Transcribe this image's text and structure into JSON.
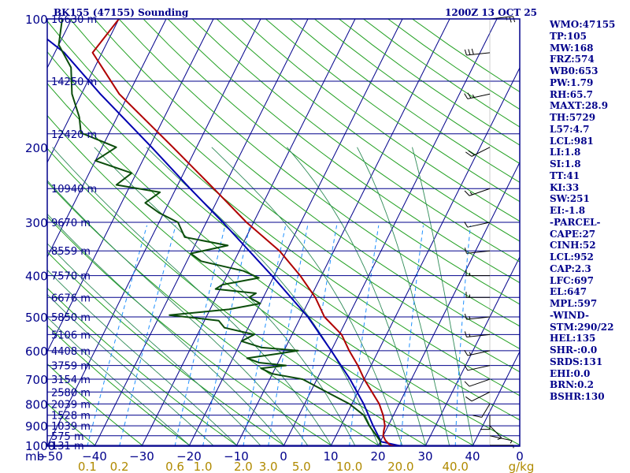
{
  "header": {
    "station": "BK155 (47155) Sounding",
    "time": "1200Z 13 OCT 25"
  },
  "indices": [
    "WMO:47155",
    "TP:105",
    "MW:168",
    "FRZ:574",
    "WB0:653",
    "PW:1.79",
    "RH:65.7",
    "MAXT:28.9",
    "TH:5729",
    "L57:4.7",
    "LCL:981",
    "LI:1.8",
    "SI:1.8",
    "TT:41",
    "KI:33",
    "SW:251",
    "EI:-1.8",
    "-PARCEL-",
    "CAPE:27",
    "CINH:52",
    "LCL:952",
    "CAP:2.3",
    "LFC:697",
    "EL:647",
    "MPL:597",
    "-WIND-",
    "STM:290/22",
    "HEL:135",
    "SHR-:0.0",
    "SRDS:131",
    "EHI:0.0",
    "BRN:0.2",
    "BSHR:130"
  ],
  "colors": {
    "frame": "#00008b",
    "isobar": "#00008b",
    "isotherm": "#00008b",
    "dry_adiabat": "#22a022",
    "moist_adiabat": "#2e8b57",
    "mixing_ratio": "#1e90ff",
    "temperature": "#b00000",
    "dewpoint": "#0b4d0b",
    "parcel": "#0000b0",
    "wind": "#000000",
    "label": "#00008b",
    "mixing_label": "#b08a00"
  },
  "chart_data": {
    "type": "skew-t log-p sounding",
    "pressure_axis_label": "mb",
    "pressure_ticks": [
      100,
      200,
      300,
      400,
      500,
      600,
      700,
      800,
      900,
      1000
    ],
    "height_labels": [
      {
        "p": 100,
        "label": "16630 m"
      },
      {
        "p": 140,
        "label": "14250 m"
      },
      {
        "p": 186,
        "label": "12420 m"
      },
      {
        "p": 250,
        "label": "10940 m"
      },
      {
        "p": 300,
        "label": "9670 m"
      },
      {
        "p": 350,
        "label": "8559 m"
      },
      {
        "p": 400,
        "label": "7570 m"
      },
      {
        "p": 450,
        "label": "6676 m"
      },
      {
        "p": 500,
        "label": "5850 m"
      },
      {
        "p": 550,
        "label": "5106 m"
      },
      {
        "p": 600,
        "label": "4408 m"
      },
      {
        "p": 650,
        "label": "3759 m"
      },
      {
        "p": 700,
        "label": "3154 m"
      },
      {
        "p": 750,
        "label": "2580 m"
      },
      {
        "p": 800,
        "label": "2039 m"
      },
      {
        "p": 850,
        "label": "1528 m"
      },
      {
        "p": 900,
        "label": "1039 m"
      },
      {
        "p": 950,
        "label": "575 m"
      },
      {
        "p": 1000,
        "label": "131 m"
      }
    ],
    "temperature_ticks": [
      -50,
      -40,
      -30,
      -20,
      -10,
      0,
      10,
      20,
      30,
      40
    ],
    "corner_tick_label": "0",
    "mixing_ratio_labels": [
      "0.1",
      "0.2",
      "0.6",
      "1.0",
      "2.0",
      "3.0",
      "5.0",
      "10.0",
      "20.0",
      "40.0"
    ],
    "mixing_ratio_values": [
      0.1,
      0.2,
      0.6,
      1.0,
      2.0,
      3.0,
      5.0,
      10.0,
      20.0,
      40.0
    ],
    "mixing_ratio_unit": "g/kg",
    "temperature_profile": [
      [
        1005,
        23.5
      ],
      [
        1000,
        22.5
      ],
      [
        975,
        21.0
      ],
      [
        950,
        20.0
      ],
      [
        925,
        19.6
      ],
      [
        900,
        19.3
      ],
      [
        850,
        17.8
      ],
      [
        800,
        15.8
      ],
      [
        750,
        13.0
      ],
      [
        700,
        10.0
      ],
      [
        650,
        7.2
      ],
      [
        600,
        3.8
      ],
      [
        550,
        0.5
      ],
      [
        500,
        -5.0
      ],
      [
        450,
        -9.0
      ],
      [
        400,
        -14.5
      ],
      [
        350,
        -21.5
      ],
      [
        300,
        -31.5
      ],
      [
        250,
        -42.0
      ],
      [
        200,
        -55.0
      ],
      [
        150,
        -72.0
      ],
      [
        120,
        -82.0
      ],
      [
        100,
        -80.0
      ]
    ],
    "dewpoint_profile": [
      [
        1005,
        21.0
      ],
      [
        1000,
        20.5
      ],
      [
        975,
        19.8
      ],
      [
        950,
        18.6
      ],
      [
        925,
        17.3
      ],
      [
        900,
        16.0
      ],
      [
        850,
        13.7
      ],
      [
        800,
        9.5
      ],
      [
        750,
        3.4
      ],
      [
        700,
        -3.0
      ],
      [
        680,
        -10.0
      ],
      [
        660,
        -13.0
      ],
      [
        650,
        -8.0
      ],
      [
        640,
        -14.0
      ],
      [
        625,
        -17.0
      ],
      [
        610,
        -11.0
      ],
      [
        600,
        -7.0
      ],
      [
        590,
        -15.0
      ],
      [
        570,
        -20.0
      ],
      [
        550,
        -18.0
      ],
      [
        530,
        -25.0
      ],
      [
        510,
        -27.0
      ],
      [
        495,
        -38.0
      ],
      [
        480,
        -26.0
      ],
      [
        465,
        -20.0
      ],
      [
        450,
        -23.0
      ],
      [
        440,
        -22.0
      ],
      [
        430,
        -31.0
      ],
      [
        420,
        -30.0
      ],
      [
        405,
        -23.0
      ],
      [
        390,
        -27.0
      ],
      [
        370,
        -37.0
      ],
      [
        355,
        -40.0
      ],
      [
        340,
        -33.0
      ],
      [
        325,
        -43.0
      ],
      [
        300,
        -46.0
      ],
      [
        285,
        -51.0
      ],
      [
        270,
        -55.0
      ],
      [
        255,
        -53.0
      ],
      [
        245,
        -63.0
      ],
      [
        230,
        -61.0
      ],
      [
        215,
        -70.0
      ],
      [
        200,
        -67.0
      ],
      [
        185,
        -76.0
      ],
      [
        170,
        -78.0
      ],
      [
        150,
        -82.0
      ],
      [
        130,
        -85.0
      ],
      [
        115,
        -90.0
      ],
      [
        100,
        -92.0
      ]
    ],
    "parcel_profile": [
      [
        1005,
        25.0
      ],
      [
        981,
        20.2
      ],
      [
        900,
        16.8
      ],
      [
        800,
        12.5
      ],
      [
        700,
        7.0
      ],
      [
        600,
        0.0
      ],
      [
        500,
        -8.5
      ],
      [
        400,
        -20.5
      ],
      [
        300,
        -36.5
      ],
      [
        250,
        -47.0
      ],
      [
        200,
        -59.5
      ],
      [
        150,
        -76.0
      ],
      [
        120,
        -88.0
      ],
      [
        110,
        -94.0
      ]
    ],
    "wind_profile": [
      [
        1000,
        90,
        5
      ],
      [
        950,
        110,
        5
      ],
      [
        900,
        150,
        5
      ],
      [
        850,
        180,
        10
      ],
      [
        800,
        200,
        10
      ],
      [
        750,
        230,
        10
      ],
      [
        700,
        240,
        10
      ],
      [
        650,
        250,
        10
      ],
      [
        600,
        250,
        15
      ],
      [
        550,
        260,
        15
      ],
      [
        500,
        260,
        15
      ],
      [
        450,
        270,
        15
      ],
      [
        400,
        270,
        15
      ],
      [
        350,
        260,
        10
      ],
      [
        300,
        250,
        10
      ],
      [
        250,
        240,
        15
      ],
      [
        200,
        230,
        20
      ],
      [
        150,
        250,
        25
      ],
      [
        120,
        260,
        30
      ],
      [
        100,
        80,
        25
      ]
    ]
  }
}
